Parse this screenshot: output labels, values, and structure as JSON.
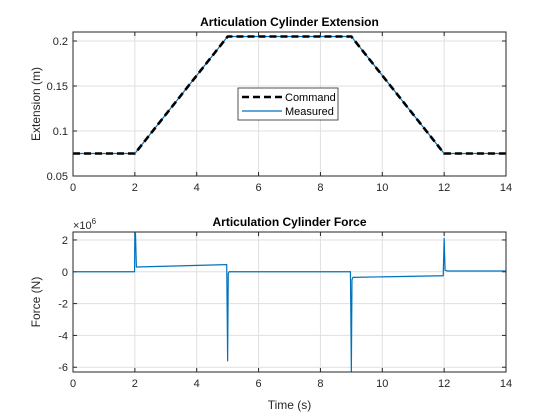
{
  "figure": {
    "background": "#ffffff"
  },
  "chart_data": [
    {
      "type": "line",
      "title": "Articulation Cylinder Extension",
      "xlabel": "",
      "ylabel": "Extension (m)",
      "xlim": [
        0,
        14
      ],
      "ylim": [
        0.05,
        0.21
      ],
      "xticks": [
        0,
        2,
        4,
        6,
        8,
        10,
        12,
        14
      ],
      "xtick_labels": [
        "0",
        "2",
        "4",
        "6",
        "8",
        "10",
        "12",
        "14"
      ],
      "yticks": [
        0.05,
        0.1,
        0.15,
        0.2
      ],
      "ytick_labels": [
        "0.05",
        "0.1",
        "0.15",
        "0.2"
      ],
      "grid": true,
      "legend": {
        "position": "center",
        "entries": [
          "Command",
          "Measured"
        ]
      },
      "series": [
        {
          "name": "Command",
          "color": "#000000",
          "style": "dashed",
          "x": [
            0,
            2,
            5,
            9,
            12,
            14
          ],
          "y": [
            0.075,
            0.075,
            0.205,
            0.205,
            0.075,
            0.075
          ]
        },
        {
          "name": "Measured",
          "color": "#0072bd",
          "style": "solid",
          "x": [
            0,
            2,
            5,
            9,
            12,
            14
          ],
          "y": [
            0.075,
            0.075,
            0.205,
            0.205,
            0.075,
            0.075
          ]
        }
      ]
    },
    {
      "type": "line",
      "title": "Articulation Cylinder Force",
      "xlabel": "Time (s)",
      "ylabel": "Force (N)",
      "exponent_label": "×10",
      "exponent_power": "6",
      "xlim": [
        0,
        14
      ],
      "ylim": [
        -6.3,
        2.5
      ],
      "xticks": [
        0,
        2,
        4,
        6,
        8,
        10,
        12,
        14
      ],
      "xtick_labels": [
        "0",
        "2",
        "4",
        "6",
        "8",
        "10",
        "12",
        "14"
      ],
      "yticks": [
        -6,
        -4,
        -2,
        0,
        2
      ],
      "ytick_labels": [
        "-6",
        "-4",
        "-2",
        "0",
        "2"
      ],
      "grid": true,
      "series": [
        {
          "color": "#0072bd",
          "style": "solid",
          "x": [
            0,
            1.99,
            2.0,
            2.02,
            2.05,
            4.95,
            4.97,
            5.0,
            5.02,
            5.05,
            8.95,
            8.97,
            9.0,
            9.02,
            9.05,
            11.95,
            11.97,
            12.0,
            12.03,
            12.1,
            12.3,
            14
          ],
          "y": [
            0.0,
            0.0,
            2.5,
            2.4,
            0.3,
            0.45,
            0.45,
            -5.6,
            -0.1,
            0.0,
            0.0,
            0.0,
            -6.3,
            -0.5,
            -0.35,
            -0.25,
            -0.25,
            2.1,
            0.1,
            0.05,
            0.05,
            0.05
          ]
        }
      ]
    }
  ]
}
